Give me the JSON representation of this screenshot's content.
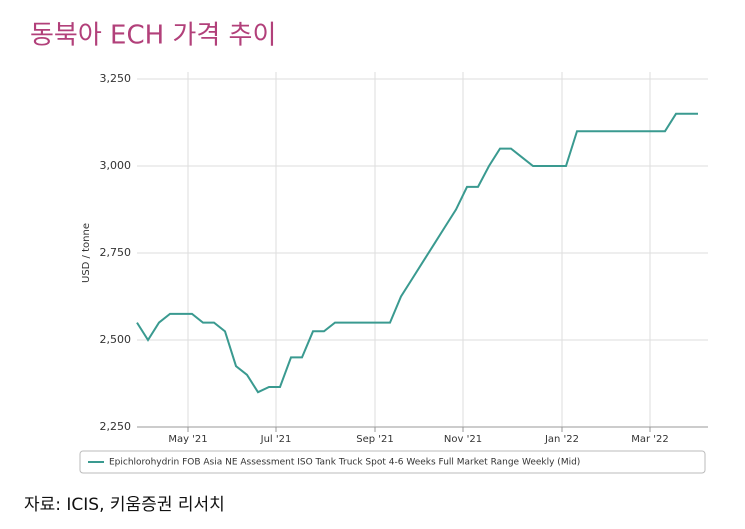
{
  "chart_data": {
    "type": "line",
    "title": "동북아 ECH 가격 추이",
    "y_label": "USD / tonne",
    "categories": [
      null,
      null,
      null,
      null,
      null,
      "May '21",
      null,
      null,
      null,
      null,
      null,
      null,
      null,
      "Jul '21",
      null,
      null,
      null,
      null,
      null,
      null,
      null,
      null,
      "Sep '21",
      null,
      null,
      null,
      null,
      null,
      null,
      null,
      "Nov '21",
      null,
      null,
      null,
      null,
      null,
      null,
      null,
      null,
      "Jan '22",
      null,
      null,
      null,
      null,
      null,
      null,
      null,
      "Mar '22",
      null,
      null,
      null,
      null
    ],
    "series": [
      {
        "name": "Epichlorohydrin FOB Asia NE Assessment ISO Tank Truck Spot 4-6 Weeks Full Market Range Weekly (Mid)",
        "color": "#3a9a90",
        "values": [
          2550,
          2500,
          2550,
          2575,
          2575,
          2575,
          2550,
          2550,
          2525,
          2425,
          2400,
          2350,
          2365,
          2365,
          2450,
          2450,
          2525,
          2525,
          2550,
          2550,
          2550,
          2550,
          2550,
          2550,
          2625,
          2675,
          2725,
          2775,
          2825,
          2875,
          2940,
          2940,
          3000,
          3050,
          3050,
          3025,
          3000,
          3000,
          3000,
          3000,
          3100,
          3100,
          3100,
          3100,
          3100,
          3100,
          3100,
          3100,
          3100,
          3150,
          3150,
          3150
        ]
      }
    ],
    "ylim": [
      2250,
      3250
    ],
    "yticks": [
      {
        "value": 2250,
        "label": "2,250"
      },
      {
        "value": 2500,
        "label": "2,500"
      },
      {
        "value": 2750,
        "label": "2,750"
      },
      {
        "value": 3000,
        "label": "3,000"
      },
      {
        "value": 3250,
        "label": "3,250"
      }
    ],
    "grid": true,
    "source": "자료: ICIS, 키움증권 리서치"
  }
}
